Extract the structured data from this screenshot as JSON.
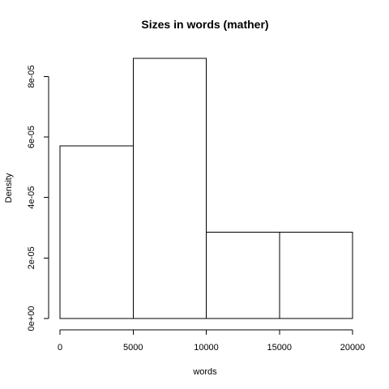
{
  "chart_data": {
    "type": "bar",
    "subtype": "histogram",
    "title": "Sizes in words (mather)",
    "xlabel": "words",
    "ylabel": "Density",
    "bins": [
      {
        "start": 0,
        "end": 5000,
        "density": 5.7e-05
      },
      {
        "start": 5000,
        "end": 10000,
        "density": 8.6e-05
      },
      {
        "start": 10000,
        "end": 15000,
        "density": 2.85e-05
      },
      {
        "start": 15000,
        "end": 20000,
        "density": 2.85e-05
      }
    ],
    "xlim": [
      0,
      20000
    ],
    "ylim": [
      0,
      8.6e-05
    ],
    "x_ticks": [
      0,
      5000,
      10000,
      15000,
      20000
    ],
    "x_tick_labels": [
      "0",
      "5000",
      "10000",
      "15000",
      "20000"
    ],
    "y_ticks": [
      0,
      2e-05,
      4e-05,
      6e-05,
      8e-05
    ],
    "y_tick_labels": [
      "0e+00",
      "2e-05",
      "4e-05",
      "6e-05",
      "8e-05"
    ],
    "grid": false,
    "legend": "none",
    "bar_fill": "#ffffff",
    "bar_stroke": "#000000"
  }
}
